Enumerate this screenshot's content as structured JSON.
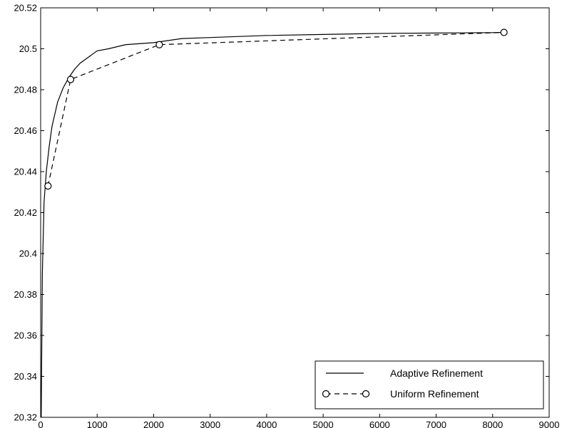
{
  "chart_data": {
    "type": "line",
    "title": "",
    "xlabel": "",
    "ylabel": "",
    "xlim": [
      0,
      9000
    ],
    "ylim": [
      20.32,
      20.52
    ],
    "xticks": [
      0,
      1000,
      2000,
      3000,
      4000,
      5000,
      6000,
      7000,
      8000,
      9000
    ],
    "xtick_labels": [
      "0",
      "1000",
      "2000",
      "3000",
      "4000",
      "5000",
      "6000",
      "7000",
      "8000",
      "9000"
    ],
    "yticks": [
      20.32,
      20.34,
      20.36,
      20.38,
      20.4,
      20.42,
      20.44,
      20.46,
      20.48,
      20.5,
      20.52
    ],
    "ytick_labels": [
      "20.32",
      "20.34",
      "20.36",
      "20.38",
      "20.4",
      "20.42",
      "20.44",
      "20.46",
      "20.48",
      "20.5",
      "20.52"
    ],
    "grid": false,
    "legend_position": "bottom-right",
    "series": [
      {
        "name": "Adaptive Refinement",
        "style": "solid",
        "marker": "none",
        "color": "#000000",
        "x": [
          10,
          30,
          60,
          100,
          150,
          200,
          250,
          300,
          400,
          500,
          600,
          700,
          800,
          1000,
          1200,
          1500,
          2000,
          2500,
          3000,
          4000,
          5000,
          6000,
          7000,
          8000,
          8200
        ],
        "y": [
          20.32,
          20.39,
          20.425,
          20.44,
          20.452,
          20.462,
          20.468,
          20.474,
          20.481,
          20.486,
          20.49,
          20.493,
          20.495,
          20.499,
          20.5,
          20.502,
          20.503,
          20.505,
          20.5055,
          20.5065,
          20.507,
          20.5075,
          20.5077,
          20.5079,
          20.508
        ]
      },
      {
        "name": "Uniform Refinement",
        "style": "dashed",
        "marker": "circle",
        "color": "#000000",
        "x": [
          130,
          530,
          2100,
          8200
        ],
        "y": [
          20.433,
          20.485,
          20.502,
          20.508
        ]
      }
    ]
  }
}
